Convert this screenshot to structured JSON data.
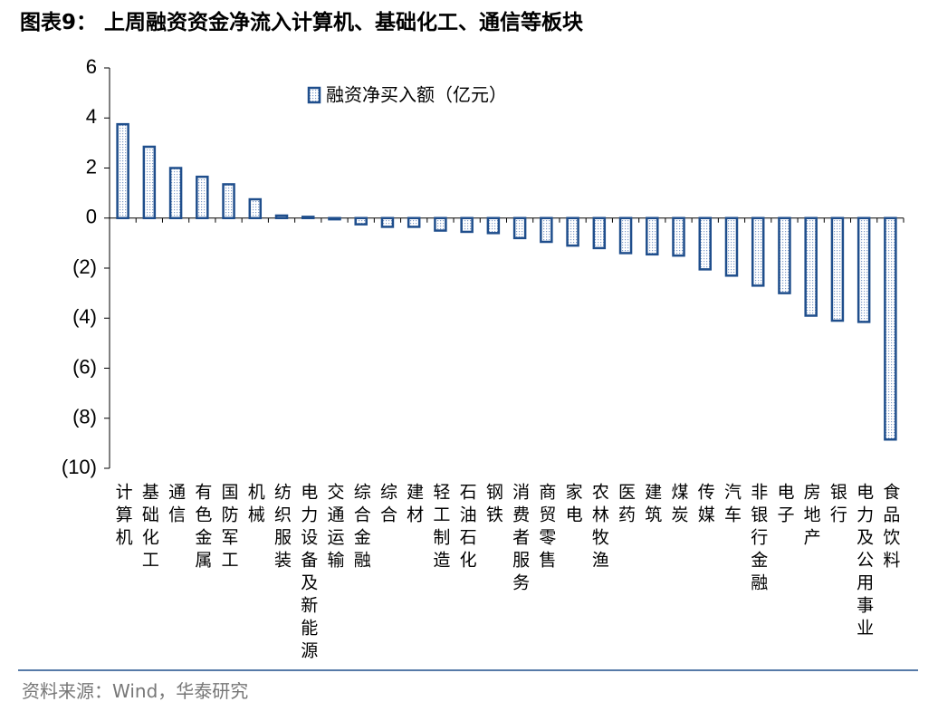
{
  "chart_data": {
    "type": "bar",
    "title": "图表9： 上周融资资金净流入计算机、基础化工、通信等板块",
    "source": "资料来源：Wind，华泰研究",
    "categories": [
      "计算机",
      "基础化工",
      "通信",
      "有色金属",
      "国防军工",
      "机械",
      "纺织服装",
      "电力设备及新能源",
      "交通运输",
      "综合金融",
      "综合",
      "建材",
      "轻工制造",
      "石油石化",
      "钢铁",
      "消费者服务",
      "商贸零售",
      "家电",
      "农林牧渔",
      "医药",
      "建筑",
      "煤炭",
      "传媒",
      "汽车",
      "非银行金融",
      "电子",
      "房地产",
      "银行",
      "电力及公用事业",
      "食品饮料"
    ],
    "series": [
      {
        "name": "融资净买入额（亿元）",
        "color": "#1f4e8c",
        "values": [
          3.75,
          2.85,
          2.0,
          1.65,
          1.35,
          0.75,
          0.1,
          0.05,
          -0.05,
          -0.25,
          -0.35,
          -0.35,
          -0.5,
          -0.55,
          -0.6,
          -0.8,
          -0.95,
          -1.1,
          -1.2,
          -1.4,
          -1.45,
          -1.5,
          -2.05,
          -2.3,
          -2.7,
          -3.0,
          -3.9,
          -4.1,
          -4.15,
          -8.85
        ]
      }
    ],
    "ylim": [
      -10,
      6
    ],
    "yticks": [
      {
        "value": -10,
        "label": "(10)"
      },
      {
        "value": -8,
        "label": "(8)"
      },
      {
        "value": -6,
        "label": "(6)"
      },
      {
        "value": -4,
        "label": "(4)"
      },
      {
        "value": -2,
        "label": "(2)"
      },
      0,
      2,
      4,
      6
    ]
  }
}
